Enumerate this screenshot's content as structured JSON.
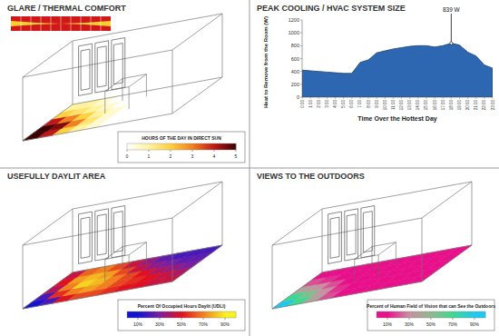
{
  "chart_data": [
    {
      "type": "heatmap",
      "title": "GLARE / THERMAL COMFORT",
      "cells": [
        [
          5,
          4,
          2,
          1,
          0.5,
          0,
          0,
          0,
          0,
          0
        ],
        [
          5,
          4.5,
          3,
          1.5,
          0.5,
          0,
          0,
          0,
          0,
          0
        ],
        [
          4,
          3,
          2,
          1,
          0.5,
          0,
          0,
          0,
          0,
          0
        ],
        [
          2,
          1.5,
          1,
          0.5,
          0,
          0,
          0,
          0,
          0,
          0
        ],
        [
          1,
          1,
          0.5,
          0,
          0,
          0,
          0,
          0,
          0,
          0
        ]
      ],
      "colorbar": {
        "label": "HOURS OF THE DAY IN DIRECT SUN",
        "range": [
          0,
          5
        ],
        "ticks": [
          0,
          1,
          2,
          3,
          4,
          5
        ],
        "colors": [
          "#ffffff",
          "#fff3a0",
          "#ffd040",
          "#f08020",
          "#c01818",
          "#3a0000"
        ]
      }
    },
    {
      "type": "area",
      "title": "PEAK COOLING / HVAC SYSTEM SIZE",
      "x_label": "Time Over the Hottest Day",
      "y_label": "Heat to Remove from the Room (W)",
      "categories": [
        "0:00",
        "1:00",
        "2:00",
        "3:00",
        "4:00",
        "5:00",
        "6:00",
        "7:00",
        "8:00",
        "9:00",
        "10:00",
        "11:00",
        "12:00",
        "13:00",
        "14:00",
        "15:00",
        "16:00",
        "17:00",
        "18:00",
        "19:00",
        "20:00",
        "21:00",
        "22:00",
        "23:00"
      ],
      "values": [
        420,
        410,
        400,
        390,
        380,
        370,
        370,
        540,
        580,
        690,
        720,
        750,
        770,
        790,
        800,
        800,
        780,
        800,
        839,
        810,
        700,
        640,
        500,
        450
      ],
      "color": "#2e67b1",
      "ylim": [
        0,
        1200
      ],
      "yticks": [
        0,
        200,
        400,
        600,
        800,
        1000,
        1200
      ],
      "annotations": [
        {
          "text": "839 W",
          "category": "18:00"
        }
      ]
    },
    {
      "type": "heatmap",
      "title": "USEFULLY DAYLIT AREA",
      "cells": [
        [
          10,
          20,
          50,
          60,
          60,
          55,
          50,
          50,
          45,
          45
        ],
        [
          20,
          55,
          70,
          75,
          70,
          60,
          55,
          50,
          45,
          40
        ],
        [
          40,
          70,
          85,
          80,
          70,
          60,
          50,
          40,
          35,
          30
        ],
        [
          50,
          75,
          80,
          75,
          60,
          45,
          35,
          30,
          25,
          25
        ],
        [
          45,
          65,
          70,
          60,
          45,
          35,
          25,
          20,
          20,
          20
        ]
      ],
      "colorbar": {
        "label": "Percent Of Occupied Hours Daylit (UDLI)",
        "range": [
          0,
          100
        ],
        "ticks": [
          {
            "value": 10,
            "label": "10%"
          },
          {
            "value": 30,
            "label": "30%"
          },
          {
            "value": 50,
            "label": "50%"
          },
          {
            "value": 70,
            "label": "70%"
          },
          {
            "value": 90,
            "label": "90%"
          }
        ],
        "colors": [
          "#1414d0",
          "#7a1fa0",
          "#e01020",
          "#f08020",
          "#f8f020"
        ]
      }
    },
    {
      "type": "heatmap",
      "title": "VIEWS TO THE OUTDOORS",
      "cells": [
        [
          90,
          70,
          40,
          20,
          10,
          10,
          10,
          10,
          10,
          10
        ],
        [
          70,
          55,
          30,
          15,
          10,
          10,
          10,
          10,
          10,
          10
        ],
        [
          40,
          30,
          20,
          10,
          10,
          10,
          10,
          10,
          10,
          10
        ],
        [
          20,
          15,
          10,
          10,
          10,
          10,
          10,
          10,
          10,
          10
        ],
        [
          10,
          10,
          10,
          10,
          10,
          10,
          10,
          10,
          10,
          10
        ]
      ],
      "colorbar": {
        "label": "Percent of Human Field of Vision that can See the Outdoors",
        "range": [
          0,
          100
        ],
        "ticks": [
          {
            "value": 10,
            "label": "10%"
          },
          {
            "value": 30,
            "label": "30%"
          },
          {
            "value": 50,
            "label": "50%"
          },
          {
            "value": 70,
            "label": "70%"
          },
          {
            "value": 90,
            "label": "90%"
          }
        ],
        "colors": [
          "#e8108a",
          "#c890a0",
          "#90b890",
          "#40d890",
          "#20c8f0"
        ]
      }
    }
  ]
}
